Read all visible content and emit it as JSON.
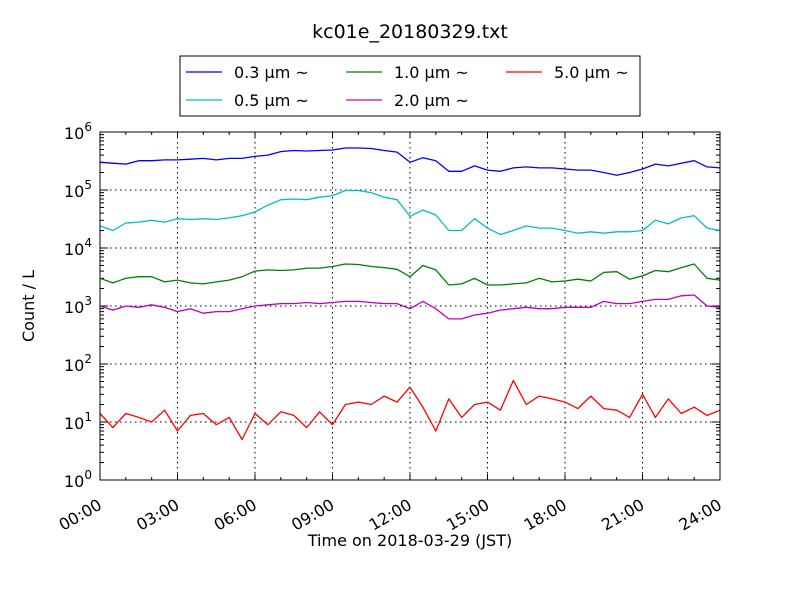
{
  "chart_data": {
    "type": "line",
    "title": "kc01e_20180329.txt",
    "xlabel": "Time on 2018-03-29 (JST)",
    "ylabel": "Count / L",
    "yscale": "log",
    "ylim": [
      1,
      1000000
    ],
    "xlim": [
      0,
      24
    ],
    "grid": true,
    "legend_placement": "top-center",
    "x_tick_labels": [
      "00:00",
      "03:00",
      "06:00",
      "09:00",
      "12:00",
      "15:00",
      "18:00",
      "21:00",
      "24:00"
    ],
    "y_tick_labels": [
      {
        "base": "10",
        "exp": "0"
      },
      {
        "base": "10",
        "exp": "1"
      },
      {
        "base": "10",
        "exp": "2"
      },
      {
        "base": "10",
        "exp": "3"
      },
      {
        "base": "10",
        "exp": "4"
      },
      {
        "base": "10",
        "exp": "5"
      },
      {
        "base": "10",
        "exp": "6"
      }
    ],
    "x_hours": [
      0,
      0.5,
      1,
      1.5,
      2,
      2.5,
      3,
      3.5,
      4,
      4.5,
      5,
      5.5,
      6,
      6.5,
      7,
      7.5,
      8,
      8.5,
      9,
      9.5,
      10,
      10.5,
      11,
      11.5,
      12,
      12.5,
      13,
      13.5,
      14,
      14.5,
      15,
      15.5,
      16,
      16.5,
      17,
      17.5,
      18,
      18.5,
      19,
      19.5,
      20,
      20.5,
      21,
      21.5,
      22,
      22.5,
      23,
      23.5,
      24
    ],
    "series": [
      {
        "name": "0.3 μm ~",
        "color": "#0000ff",
        "values": [
          300000,
          290000,
          280000,
          320000,
          320000,
          330000,
          330000,
          340000,
          350000,
          330000,
          350000,
          350000,
          380000,
          400000,
          460000,
          480000,
          470000,
          480000,
          490000,
          530000,
          530000,
          520000,
          480000,
          450000,
          300000,
          360000,
          320000,
          210000,
          210000,
          260000,
          220000,
          210000,
          240000,
          250000,
          240000,
          240000,
          230000,
          220000,
          220000,
          200000,
          180000,
          200000,
          230000,
          280000,
          260000,
          290000,
          320000,
          250000,
          240000
        ]
      },
      {
        "name": "0.5 μm ~",
        "color": "#00bfbf",
        "values": [
          24000,
          20000,
          27000,
          28000,
          30000,
          28000,
          32000,
          31000,
          32000,
          31000,
          33000,
          36000,
          42000,
          55000,
          68000,
          70000,
          68000,
          75000,
          80000,
          98000,
          98000,
          90000,
          75000,
          68000,
          35000,
          45000,
          37000,
          20000,
          20000,
          32000,
          22000,
          17000,
          20000,
          24000,
          22000,
          22000,
          20000,
          18000,
          19000,
          18000,
          19000,
          19000,
          20000,
          30000,
          26000,
          33000,
          36000,
          22000,
          20000
        ]
      },
      {
        "name": "1.0 μm ~",
        "color": "#008000",
        "values": [
          3000,
          2500,
          3000,
          3200,
          3200,
          2600,
          2800,
          2500,
          2400,
          2600,
          2800,
          3200,
          4000,
          4200,
          4100,
          4200,
          4500,
          4500,
          4800,
          5300,
          5200,
          4800,
          4600,
          4300,
          3200,
          5000,
          4200,
          2300,
          2400,
          3000,
          2300,
          2300,
          2400,
          2500,
          3000,
          2600,
          2700,
          2900,
          2700,
          3800,
          3900,
          2900,
          3300,
          4100,
          3900,
          4600,
          5300,
          3000,
          2800
        ]
      },
      {
        "name": "2.0 μm ~",
        "color": "#bf00bf",
        "values": [
          1000,
          850,
          1000,
          950,
          1050,
          950,
          800,
          900,
          750,
          800,
          800,
          900,
          1000,
          1050,
          1100,
          1100,
          1150,
          1100,
          1150,
          1200,
          1200,
          1150,
          1100,
          1100,
          900,
          1200,
          900,
          600,
          600,
          700,
          750,
          850,
          900,
          950,
          900,
          900,
          950,
          950,
          950,
          1200,
          1100,
          1100,
          1200,
          1300,
          1300,
          1500,
          1550,
          1000,
          950
        ]
      },
      {
        "name": "5.0 μm ~",
        "color": "#ff0000",
        "values": [
          14,
          8,
          14,
          12,
          10,
          16,
          7,
          13,
          14,
          9,
          12,
          5,
          14,
          9,
          15,
          13,
          8,
          15,
          9,
          20,
          22,
          20,
          28,
          22,
          40,
          18,
          7,
          25,
          12,
          20,
          22,
          16,
          52,
          20,
          28,
          25,
          22,
          17,
          28,
          17,
          16,
          12,
          30,
          12,
          25,
          14,
          18,
          13,
          16
        ]
      }
    ]
  }
}
